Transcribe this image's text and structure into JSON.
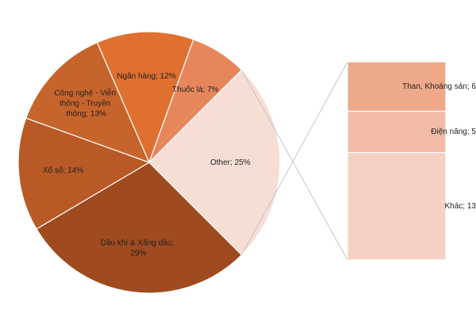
{
  "chart_data": {
    "type": "pie-of-bar",
    "categories": [
      "Dầu khí & Xăng dầu",
      "Xổ số",
      "Công nghệ - Viễn thông - Truyền thông",
      "Ngân hàng",
      "Thuốc lá",
      "Other"
    ],
    "values": [
      29,
      14,
      13,
      12,
      7,
      25
    ],
    "labels": [
      "Dầu khí & Xăng dầu; 29%",
      "Xổ số; 14%",
      "Công nghệ - Viễn thông - Truyền thông; 13%",
      "Ngân hàng; 12%",
      "Thuốc lá; 7%",
      "Other; 25%"
    ],
    "colors": [
      "#a04a1f",
      "#b85926",
      "#c7642c",
      "#df7030",
      "#e8865b",
      "#f7ded5"
    ],
    "bar": {
      "categories": [
        "Than, Khoáng sản",
        "Điện năng",
        "Khác"
      ],
      "values": [
        6,
        5,
        13
      ],
      "labels": [
        "Than, Khoáng sản; 6",
        "Điện năng; 5",
        "Khác; 13"
      ],
      "colors": [
        "#eea98b",
        "#f2bba7",
        "#f5d0c3"
      ]
    }
  }
}
